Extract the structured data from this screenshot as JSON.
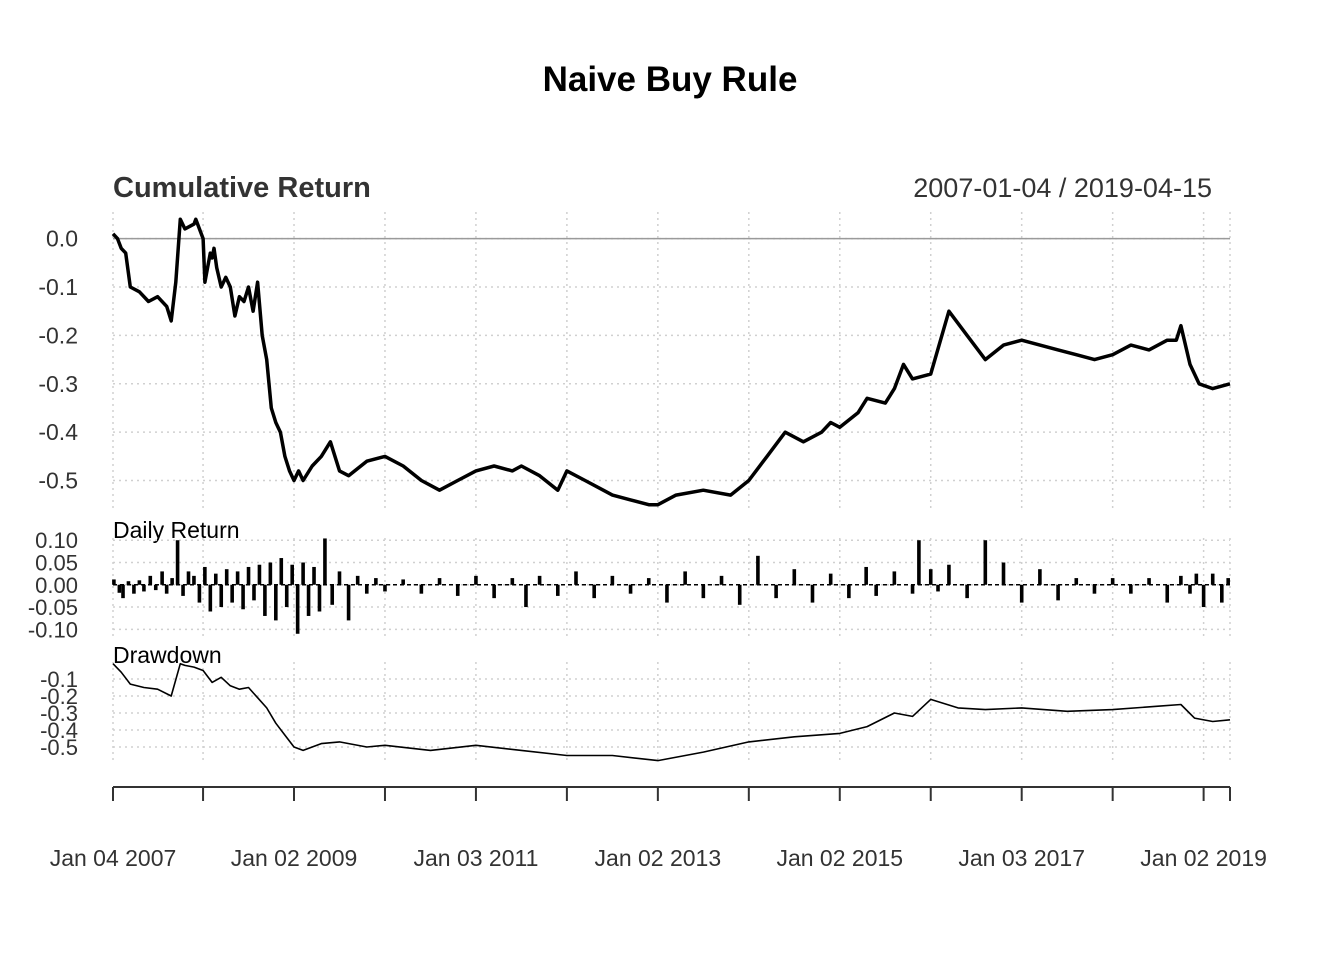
{
  "title": "Naive Buy Rule",
  "date_range": "2007-01-04 / 2019-04-15",
  "x_axis": {
    "labels": [
      "Jan 04 2007",
      "Jan 02 2009",
      "Jan 03 2011",
      "Jan 02 2013",
      "Jan 02 2015",
      "Jan 03 2017",
      "Jan 02 2019"
    ],
    "label_years": [
      2007.01,
      2009.0,
      2011.0,
      2013.0,
      2015.0,
      2017.0,
      2019.0
    ],
    "tick_years": [
      2007.01,
      2008.0,
      2009.0,
      2010.0,
      2011.0,
      2012.0,
      2013.0,
      2014.0,
      2015.0,
      2016.0,
      2017.0,
      2018.0,
      2019.0,
      2019.29
    ],
    "range": [
      2007.01,
      2019.29
    ]
  },
  "chart_data": [
    {
      "type": "line",
      "panel": "cumulative",
      "title": "Cumulative Return",
      "yticks": [
        "0.0",
        "-0.1",
        "-0.2",
        "-0.3",
        "-0.4",
        "-0.5"
      ],
      "ytick_values": [
        0.0,
        -0.1,
        -0.2,
        -0.3,
        -0.4,
        -0.5
      ],
      "ylim": [
        -0.565,
        0.055
      ],
      "reference_line": 0.0,
      "x": [
        2007.01,
        2007.06,
        2007.1,
        2007.15,
        2007.2,
        2007.3,
        2007.4,
        2007.5,
        2007.6,
        2007.65,
        2007.7,
        2007.75,
        2007.8,
        2007.9,
        2007.92,
        2008.0,
        2008.02,
        2008.05,
        2008.08,
        2008.1,
        2008.12,
        2008.15,
        2008.2,
        2008.25,
        2008.3,
        2008.35,
        2008.4,
        2008.45,
        2008.5,
        2008.55,
        2008.6,
        2008.65,
        2008.7,
        2008.75,
        2008.8,
        2008.85,
        2008.9,
        2008.95,
        2009.0,
        2009.05,
        2009.1,
        2009.2,
        2009.3,
        2009.4,
        2009.5,
        2009.6,
        2009.8,
        2010.0,
        2010.2,
        2010.4,
        2010.6,
        2010.8,
        2011.0,
        2011.2,
        2011.4,
        2011.5,
        2011.7,
        2011.9,
        2012.0,
        2012.2,
        2012.4,
        2012.5,
        2012.7,
        2012.9,
        2013.0,
        2013.2,
        2013.5,
        2013.8,
        2014.0,
        2014.2,
        2014.4,
        2014.6,
        2014.8,
        2014.9,
        2015.0,
        2015.2,
        2015.3,
        2015.5,
        2015.6,
        2015.7,
        2015.8,
        2016.0,
        2016.2,
        2016.4,
        2016.6,
        2016.8,
        2017.0,
        2017.2,
        2017.4,
        2017.6,
        2017.8,
        2018.0,
        2018.2,
        2018.4,
        2018.6,
        2018.7,
        2018.75,
        2018.85,
        2018.95,
        2019.1,
        2019.29
      ],
      "values": [
        0.01,
        0.0,
        -0.02,
        -0.03,
        -0.1,
        -0.11,
        -0.13,
        -0.12,
        -0.14,
        -0.17,
        -0.09,
        0.04,
        0.02,
        0.03,
        0.04,
        0.0,
        -0.09,
        -0.06,
        -0.03,
        -0.04,
        -0.02,
        -0.06,
        -0.1,
        -0.08,
        -0.1,
        -0.16,
        -0.12,
        -0.13,
        -0.1,
        -0.15,
        -0.09,
        -0.2,
        -0.25,
        -0.35,
        -0.38,
        -0.4,
        -0.45,
        -0.48,
        -0.5,
        -0.48,
        -0.5,
        -0.47,
        -0.45,
        -0.42,
        -0.48,
        -0.49,
        -0.46,
        -0.45,
        -0.47,
        -0.5,
        -0.52,
        -0.5,
        -0.48,
        -0.47,
        -0.48,
        -0.47,
        -0.49,
        -0.52,
        -0.48,
        -0.5,
        -0.52,
        -0.53,
        -0.54,
        -0.55,
        -0.55,
        -0.53,
        -0.52,
        -0.53,
        -0.5,
        -0.45,
        -0.4,
        -0.42,
        -0.4,
        -0.38,
        -0.39,
        -0.36,
        -0.33,
        -0.34,
        -0.31,
        -0.26,
        -0.29,
        -0.28,
        -0.15,
        -0.2,
        -0.25,
        -0.22,
        -0.21,
        -0.22,
        -0.23,
        -0.24,
        -0.25,
        -0.24,
        -0.22,
        -0.23,
        -0.21,
        -0.21,
        -0.18,
        -0.26,
        -0.3,
        -0.31,
        -0.3
      ]
    },
    {
      "type": "bar",
      "panel": "daily",
      "title": "Daily Return",
      "yticks": [
        "0.10",
        "0.05",
        "0.00",
        "-0.05",
        "-0.10"
      ],
      "ytick_values": [
        0.1,
        0.05,
        0.0,
        -0.05,
        -0.1
      ],
      "ylim": [
        -0.115,
        0.105
      ],
      "x": [
        2007.02,
        2007.08,
        2007.12,
        2007.18,
        2007.24,
        2007.3,
        2007.35,
        2007.42,
        2007.48,
        2007.55,
        2007.6,
        2007.66,
        2007.72,
        2007.78,
        2007.84,
        2007.9,
        2007.96,
        2008.02,
        2008.08,
        2008.14,
        2008.2,
        2008.26,
        2008.32,
        2008.38,
        2008.44,
        2008.5,
        2008.56,
        2008.62,
        2008.68,
        2008.74,
        2008.8,
        2008.86,
        2008.92,
        2008.98,
        2009.04,
        2009.1,
        2009.16,
        2009.22,
        2009.28,
        2009.34,
        2009.42,
        2009.5,
        2009.6,
        2009.7,
        2009.8,
        2009.9,
        2010.0,
        2010.2,
        2010.4,
        2010.6,
        2010.8,
        2011.0,
        2011.2,
        2011.4,
        2011.55,
        2011.7,
        2011.9,
        2012.1,
        2012.3,
        2012.5,
        2012.7,
        2012.9,
        2013.1,
        2013.3,
        2013.5,
        2013.7,
        2013.9,
        2014.1,
        2014.3,
        2014.5,
        2014.7,
        2014.9,
        2015.1,
        2015.29,
        2015.4,
        2015.6,
        2015.8,
        2015.87,
        2016.0,
        2016.08,
        2016.2,
        2016.4,
        2016.6,
        2016.8,
        2017.0,
        2017.2,
        2017.4,
        2017.6,
        2017.8,
        2018.0,
        2018.2,
        2018.4,
        2018.6,
        2018.75,
        2018.85,
        2018.92,
        2019.0,
        2019.1,
        2019.2,
        2019.27
      ],
      "values": [
        0.012,
        -0.018,
        -0.03,
        0.008,
        -0.02,
        0.01,
        -0.015,
        0.02,
        -0.012,
        0.03,
        -0.02,
        0.015,
        0.1,
        -0.025,
        0.03,
        0.02,
        -0.04,
        0.04,
        -0.06,
        0.025,
        -0.05,
        0.035,
        -0.04,
        0.03,
        -0.055,
        0.04,
        -0.035,
        0.045,
        -0.07,
        0.05,
        -0.08,
        0.06,
        -0.05,
        0.045,
        -0.11,
        0.05,
        -0.07,
        0.04,
        -0.06,
        0.104,
        -0.045,
        0.03,
        -0.08,
        0.02,
        -0.02,
        0.015,
        -0.015,
        0.012,
        -0.02,
        0.015,
        -0.025,
        0.02,
        -0.03,
        0.015,
        -0.05,
        0.02,
        -0.025,
        0.03,
        -0.03,
        0.02,
        -0.02,
        0.015,
        -0.04,
        0.03,
        -0.03,
        0.02,
        -0.045,
        0.065,
        -0.03,
        0.035,
        -0.04,
        0.025,
        -0.03,
        0.04,
        -0.025,
        0.03,
        -0.02,
        0.1,
        0.035,
        -0.015,
        0.045,
        -0.03,
        0.1,
        0.05,
        -0.04,
        0.035,
        -0.035,
        0.015,
        -0.02,
        0.015,
        -0.02,
        0.015,
        -0.04,
        0.02,
        -0.02,
        0.025,
        -0.05,
        0.025,
        -0.04,
        0.015
      ]
    },
    {
      "type": "line",
      "panel": "drawdown",
      "title": "Drawdown",
      "yticks": [
        "-0.1",
        "-0.2",
        "-0.3",
        "-0.4",
        "-0.5"
      ],
      "ytick_values": [
        -0.1,
        -0.2,
        -0.3,
        -0.4,
        -0.5
      ],
      "ylim": [
        -0.6,
        0.0
      ],
      "x": [
        2007.01,
        2007.1,
        2007.2,
        2007.35,
        2007.5,
        2007.65,
        2007.75,
        2007.8,
        2007.9,
        2008.0,
        2008.1,
        2008.2,
        2008.3,
        2008.4,
        2008.5,
        2008.6,
        2008.7,
        2008.8,
        2008.9,
        2009.0,
        2009.1,
        2009.3,
        2009.5,
        2009.8,
        2010.0,
        2010.5,
        2011.0,
        2011.5,
        2012.0,
        2012.5,
        2013.0,
        2013.5,
        2014.0,
        2014.5,
        2015.0,
        2015.3,
        2015.6,
        2015.8,
        2016.0,
        2016.3,
        2016.6,
        2017.0,
        2017.5,
        2018.0,
        2018.5,
        2018.75,
        2018.9,
        2019.1,
        2019.29
      ],
      "values": [
        -0.01,
        -0.06,
        -0.13,
        -0.15,
        -0.16,
        -0.2,
        -0.01,
        -0.02,
        -0.03,
        -0.05,
        -0.12,
        -0.09,
        -0.14,
        -0.16,
        -0.15,
        -0.21,
        -0.27,
        -0.36,
        -0.43,
        -0.5,
        -0.52,
        -0.48,
        -0.47,
        -0.5,
        -0.49,
        -0.52,
        -0.49,
        -0.52,
        -0.55,
        -0.55,
        -0.58,
        -0.53,
        -0.47,
        -0.44,
        -0.42,
        -0.38,
        -0.3,
        -0.32,
        -0.22,
        -0.27,
        -0.28,
        -0.27,
        -0.29,
        -0.28,
        -0.26,
        -0.25,
        -0.33,
        -0.35,
        -0.34
      ]
    }
  ]
}
